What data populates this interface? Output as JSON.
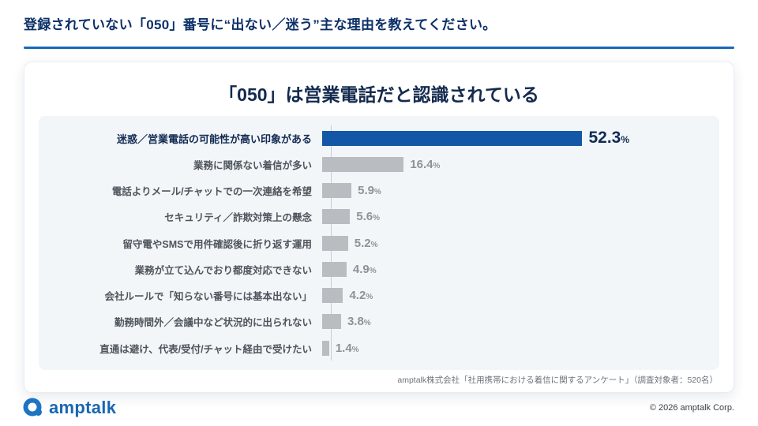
{
  "page": {
    "question": "登録されていない「050」番号に“出ない／迷う”主な理由を教えてください。",
    "logo_text": "amptalk",
    "copyright": "© 2026 amptalk Corp.",
    "accent_color": "#1769b8"
  },
  "chart_data": {
    "type": "bar",
    "orientation": "horizontal",
    "title": "「050」は営業電話だと認識されている",
    "source": "amptalk株式会社「社用携帯における着信に関するアンケート」（調査対象者：520名）",
    "unit": "%",
    "categories": [
      "迷惑／営業電話の可能性が高い印象がある",
      "業務に関係ない着信が多い",
      "電話よりメール/チャットでの一次連絡を希望",
      "セキュリティ／詐欺対策上の懸念",
      "留守電やSMSで用件確認後に折り返す運用",
      "業務が立て込んでおり都度対応できない",
      "会社ルールで「知らない番号には基本出ない」",
      "勤務時間外／会議中など状況的に出られない",
      "直通は避け、代表/受付/チャット経由で受けたい"
    ],
    "values": [
      52.3,
      16.4,
      5.9,
      5.6,
      5.2,
      4.9,
      4.2,
      3.8,
      1.4
    ],
    "highlight_index": 0,
    "xlim": [
      0,
      60
    ],
    "grid": false,
    "legend": false,
    "value_labels_at_bar_end": true,
    "colors": {
      "highlight_bar": "#1457a6",
      "bar": "#b9bcc0",
      "highlight_text": "#102a55",
      "text": "#8e9298"
    }
  }
}
